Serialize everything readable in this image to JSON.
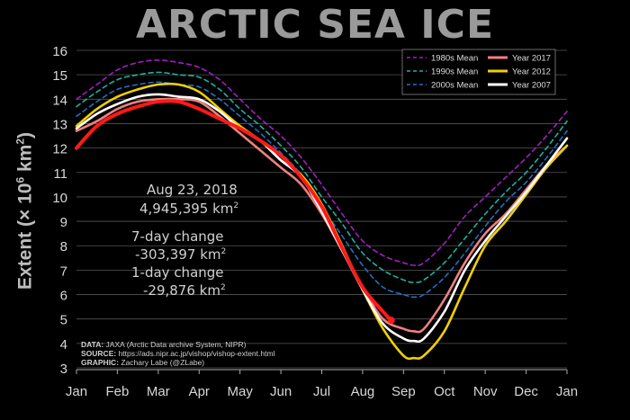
{
  "chart_data": {
    "type": "line",
    "title": "ARCTIC SEA ICE",
    "ylabel": "Extent (× 10",
    "ylabel_exp": "6",
    "ylabel_unit": " km",
    "ylabel_unit_exp": "2",
    "ylabel_close": ")",
    "ylim": [
      3,
      16
    ],
    "yticks": [
      3,
      4,
      5,
      6,
      7,
      8,
      9,
      10,
      11,
      12,
      13,
      14,
      15,
      16
    ],
    "xlabels": [
      "Jan",
      "Feb",
      "Mar",
      "Apr",
      "May",
      "Jun",
      "Jul",
      "Aug",
      "Sep",
      "Oct",
      "Nov",
      "Dec",
      "Jan"
    ],
    "x_unit": "month",
    "grid": true,
    "legend_position": "top-right",
    "series": [
      {
        "name": "1980s Mean",
        "style": "dashed",
        "color": "#a020c0",
        "x": [
          0,
          0.5,
          1,
          1.5,
          2,
          2.5,
          3,
          3.5,
          4,
          4.5,
          5,
          5.5,
          6,
          6.5,
          7,
          7.5,
          8,
          8.25,
          8.5,
          9,
          9.5,
          10,
          10.5,
          11,
          11.5,
          12
        ],
        "y": [
          14.0,
          14.6,
          15.2,
          15.5,
          15.6,
          15.5,
          15.3,
          14.8,
          14.0,
          13.2,
          12.5,
          11.6,
          10.5,
          9.3,
          8.2,
          7.6,
          7.3,
          7.2,
          7.3,
          8.1,
          9.2,
          10.0,
          10.8,
          11.6,
          12.5,
          13.5
        ]
      },
      {
        "name": "1990s Mean",
        "style": "dashed",
        "color": "#20b0a0",
        "x": [
          0,
          0.5,
          1,
          1.5,
          2,
          2.5,
          3,
          3.5,
          4,
          4.5,
          5,
          5.5,
          6,
          6.5,
          7,
          7.5,
          8,
          8.25,
          8.5,
          9,
          9.5,
          10,
          10.5,
          11,
          11.5,
          12
        ],
        "y": [
          13.7,
          14.3,
          14.8,
          15.0,
          15.1,
          15.0,
          14.9,
          14.4,
          13.6,
          12.9,
          12.1,
          11.2,
          10.0,
          8.9,
          7.7,
          7.0,
          6.6,
          6.5,
          6.6,
          7.3,
          8.3,
          9.3,
          10.2,
          11.0,
          12.0,
          13.1
        ]
      },
      {
        "name": "2000s Mean",
        "style": "dashed",
        "color": "#2070c0",
        "x": [
          0,
          0.5,
          1,
          1.5,
          2,
          2.5,
          3,
          3.5,
          4,
          4.5,
          5,
          5.5,
          6,
          6.5,
          7,
          7.5,
          8,
          8.25,
          8.5,
          9,
          9.5,
          10,
          10.5,
          11,
          11.5,
          12
        ],
        "y": [
          13.3,
          13.9,
          14.4,
          14.6,
          14.7,
          14.6,
          14.5,
          14.0,
          13.3,
          12.6,
          11.8,
          10.9,
          9.6,
          8.4,
          7.2,
          6.3,
          6.0,
          5.9,
          6.0,
          6.7,
          7.7,
          8.8,
          9.8,
          10.6,
          11.6,
          12.7
        ]
      },
      {
        "name": "Year 2017",
        "style": "solid",
        "color": "#f08080",
        "x": [
          0,
          0.5,
          1,
          1.5,
          2,
          2.5,
          3,
          3.5,
          4,
          4.5,
          5,
          5.5,
          6,
          6.5,
          7,
          7.5,
          8,
          8.25,
          8.5,
          9,
          9.5,
          10,
          10.5,
          11,
          11.5,
          12
        ],
        "y": [
          12.7,
          13.1,
          13.6,
          13.9,
          14.0,
          14.0,
          13.9,
          13.3,
          12.6,
          11.9,
          11.2,
          10.5,
          9.3,
          7.8,
          6.3,
          5.0,
          4.6,
          4.5,
          4.6,
          5.8,
          7.3,
          8.5,
          9.3,
          10.3,
          11.3,
          12.1
        ]
      },
      {
        "name": "Year 2012",
        "style": "solid",
        "color": "#f0d000",
        "x": [
          0,
          0.5,
          1,
          1.5,
          2,
          2.5,
          3,
          3.5,
          4,
          4.5,
          5,
          5.5,
          6,
          6.5,
          7,
          7.5,
          8,
          8.25,
          8.5,
          9,
          9.5,
          10,
          10.5,
          11,
          11.5,
          12
        ],
        "y": [
          12.9,
          13.6,
          14.1,
          14.4,
          14.6,
          14.6,
          14.3,
          13.6,
          12.9,
          12.3,
          11.5,
          10.9,
          9.7,
          8.0,
          6.2,
          4.6,
          3.5,
          3.4,
          3.5,
          4.5,
          6.3,
          8.0,
          9.0,
          10.1,
          11.2,
          12.1
        ]
      },
      {
        "name": "Year 2007",
        "style": "solid",
        "color": "#ffffff",
        "x": [
          0,
          0.5,
          1,
          1.5,
          2,
          2.5,
          3,
          3.5,
          4,
          4.5,
          5,
          5.5,
          6,
          6.5,
          7,
          7.5,
          8,
          8.25,
          8.5,
          9,
          9.5,
          10,
          10.5,
          11,
          11.5,
          12
        ],
        "y": [
          12.8,
          13.4,
          13.8,
          14.1,
          14.2,
          14.1,
          14.0,
          13.5,
          12.8,
          12.3,
          11.5,
          10.8,
          9.4,
          7.8,
          6.2,
          4.8,
          4.2,
          4.1,
          4.2,
          5.3,
          7.0,
          8.2,
          9.2,
          10.2,
          11.3,
          12.4
        ]
      },
      {
        "name": "Year 2018",
        "style": "solid",
        "color": "#ff1a1a",
        "legend": false,
        "x": [
          0,
          0.5,
          1,
          1.5,
          2,
          2.5,
          3,
          3.5,
          4,
          4.5,
          5,
          5.5,
          6,
          6.5,
          7,
          7.5,
          7.7
        ],
        "y": [
          12.0,
          12.9,
          13.4,
          13.7,
          13.9,
          13.9,
          13.6,
          13.2,
          12.8,
          12.3,
          11.7,
          10.8,
          9.6,
          7.9,
          6.3,
          5.3,
          4.95
        ]
      }
    ],
    "endpoint": {
      "x": 7.7,
      "y": 4.945
    },
    "annotations": {
      "date": "Aug 23, 2018",
      "extent": "4,945,395 km",
      "extent_exp": "2",
      "week_label": "7-day change",
      "week_value": "-303,397 km",
      "week_exp": "2",
      "day_label": "1-day change",
      "day_value": "-29,876 km",
      "day_exp": "2"
    }
  },
  "credits": {
    "data_label": "DATA:",
    "data_text": " JAXA (Arctic Data archive System, NIPR)",
    "source_label": "SOURCE:",
    "source_text": " https://ads.nipr.ac.jp/vishop/vishop-extent.html",
    "graphic_label": "GRAPHIC:",
    "graphic_text": " Zachary Labe (@ZLabe)"
  }
}
